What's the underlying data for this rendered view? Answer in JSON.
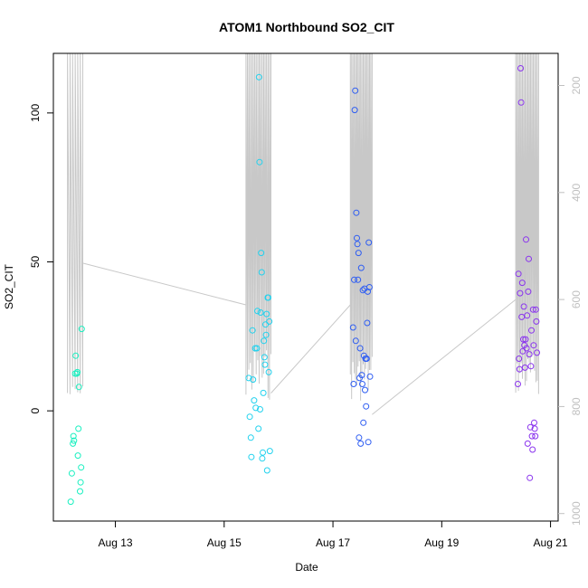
{
  "chart_data": {
    "type": "scatter",
    "title": "ATOM1 Northbound SO2_CIT",
    "xlabel": "Date",
    "ylabel": "SO2_CIT",
    "x_unit": "days since Aug 12 00:00",
    "x_ticks": [
      {
        "value": 1,
        "label": "Aug 13"
      },
      {
        "value": 3,
        "label": "Aug 15"
      },
      {
        "value": 5,
        "label": "Aug 17"
      },
      {
        "value": 7,
        "label": "Aug 19"
      },
      {
        "value": 9,
        "label": "Aug 21"
      }
    ],
    "y_ticks": [
      0,
      50,
      100
    ],
    "y_range": [
      -37,
      120
    ],
    "x_range": [
      -0.14,
      9.14
    ],
    "right_axis": {
      "ticks": [
        200,
        400,
        600,
        800,
        1000
      ],
      "range": [
        1014,
        140
      ],
      "color": "#c0c0c0"
    },
    "series": [
      {
        "color": "#19f0c0",
        "points": [
          [
            0.18,
            -30.5
          ],
          [
            0.2,
            -21
          ],
          [
            0.22,
            -11
          ],
          [
            0.23,
            -8.5
          ],
          [
            0.24,
            -10
          ],
          [
            0.26,
            12.5
          ],
          [
            0.27,
            18.5
          ],
          [
            0.29,
            12.5
          ],
          [
            0.3,
            13
          ],
          [
            0.31,
            -15
          ],
          [
            0.32,
            -6
          ],
          [
            0.33,
            8
          ],
          [
            0.35,
            -27
          ],
          [
            0.36,
            -24
          ],
          [
            0.37,
            -19
          ],
          [
            0.38,
            27.5
          ]
        ]
      },
      {
        "color": "#22d2ee",
        "points": [
          [
            3.45,
            11
          ],
          [
            3.47,
            -2
          ],
          [
            3.49,
            -9
          ],
          [
            3.5,
            -15.5
          ],
          [
            3.52,
            27
          ],
          [
            3.53,
            10.5
          ],
          [
            3.55,
            3.5
          ],
          [
            3.57,
            21
          ],
          [
            3.58,
            1
          ],
          [
            3.6,
            21
          ],
          [
            3.61,
            33.5
          ],
          [
            3.63,
            -6
          ],
          [
            3.64,
            112
          ],
          [
            3.65,
            83.5
          ],
          [
            3.66,
            0.5
          ],
          [
            3.67,
            33
          ],
          [
            3.68,
            53
          ],
          [
            3.69,
            46.5
          ],
          [
            3.7,
            -16
          ],
          [
            3.71,
            -14
          ],
          [
            3.72,
            6
          ],
          [
            3.73,
            23.5
          ],
          [
            3.74,
            18
          ],
          [
            3.75,
            15.5
          ],
          [
            3.76,
            29
          ],
          [
            3.77,
            25.5
          ],
          [
            3.78,
            32.5
          ],
          [
            3.79,
            -20
          ],
          [
            3.8,
            38
          ],
          [
            3.81,
            38
          ],
          [
            3.82,
            13
          ],
          [
            3.83,
            30
          ],
          [
            3.84,
            -13.5
          ]
        ]
      },
      {
        "color": "#2e5df2",
        "points": [
          [
            5.37,
            28
          ],
          [
            5.38,
            9
          ],
          [
            5.39,
            44
          ],
          [
            5.4,
            101
          ],
          [
            5.41,
            107.5
          ],
          [
            5.42,
            23.5
          ],
          [
            5.43,
            66.5
          ],
          [
            5.44,
            58
          ],
          [
            5.45,
            56
          ],
          [
            5.46,
            44
          ],
          [
            5.47,
            53
          ],
          [
            5.48,
            -9
          ],
          [
            5.49,
            11
          ],
          [
            5.5,
            21
          ],
          [
            5.51,
            -11
          ],
          [
            5.52,
            48
          ],
          [
            5.53,
            12
          ],
          [
            5.54,
            9
          ],
          [
            5.55,
            40.5
          ],
          [
            5.56,
            -4
          ],
          [
            5.57,
            18.5
          ],
          [
            5.58,
            41
          ],
          [
            5.59,
            7
          ],
          [
            5.6,
            17.5
          ],
          [
            5.61,
            1.5
          ],
          [
            5.62,
            17.5
          ],
          [
            5.63,
            29.5
          ],
          [
            5.64,
            40
          ],
          [
            5.65,
            -10.5
          ],
          [
            5.66,
            56.5
          ],
          [
            5.67,
            41.5
          ],
          [
            5.68,
            11.5
          ]
        ]
      },
      {
        "color": "#8a34ee",
        "points": [
          [
            8.4,
            9
          ],
          [
            8.41,
            46
          ],
          [
            8.42,
            17.5
          ],
          [
            8.43,
            14
          ],
          [
            8.44,
            39.5
          ],
          [
            8.45,
            115
          ],
          [
            8.46,
            103.5
          ],
          [
            8.47,
            31.5
          ],
          [
            8.48,
            43
          ],
          [
            8.49,
            20
          ],
          [
            8.5,
            24
          ],
          [
            8.51,
            35
          ],
          [
            8.52,
            22
          ],
          [
            8.53,
            14.5
          ],
          [
            8.54,
            24
          ],
          [
            8.55,
            57.5
          ],
          [
            8.56,
            21
          ],
          [
            8.57,
            32
          ],
          [
            8.58,
            -11
          ],
          [
            8.59,
            40
          ],
          [
            8.6,
            51
          ],
          [
            8.61,
            19
          ],
          [
            8.62,
            -22.5
          ],
          [
            8.63,
            -5.5
          ],
          [
            8.64,
            15
          ],
          [
            8.65,
            27
          ],
          [
            8.66,
            -8.5
          ],
          [
            8.67,
            -13
          ],
          [
            8.68,
            34
          ],
          [
            8.69,
            22
          ],
          [
            8.7,
            -4
          ],
          [
            8.71,
            -6
          ],
          [
            8.72,
            -8.5
          ],
          [
            8.73,
            34
          ],
          [
            8.74,
            30
          ],
          [
            8.75,
            19.5
          ]
        ]
      }
    ],
    "overlay_line": {
      "color": "#c8c8c8",
      "axis": "right",
      "spike_groups": [
        {
          "x_start": 0.12,
          "x_end": 0.4,
          "count": 7,
          "low_min": 760,
          "low_max": 790
        },
        {
          "x_start": 3.4,
          "x_end": 3.86,
          "count": 18,
          "low_min": 690,
          "low_max": 790
        },
        {
          "x_start": 5.32,
          "x_end": 5.72,
          "count": 18,
          "low_min": 700,
          "low_max": 790
        },
        {
          "x_start": 8.36,
          "x_end": 8.78,
          "count": 18,
          "low_min": 700,
          "low_max": 780
        }
      ],
      "connectors": [
        [
          [
            0.4,
            532
          ],
          [
            3.4,
            610
          ]
        ],
        [
          [
            3.86,
            775
          ],
          [
            5.32,
            610
          ]
        ],
        [
          [
            5.72,
            815
          ],
          [
            8.36,
            600
          ]
        ]
      ]
    }
  }
}
